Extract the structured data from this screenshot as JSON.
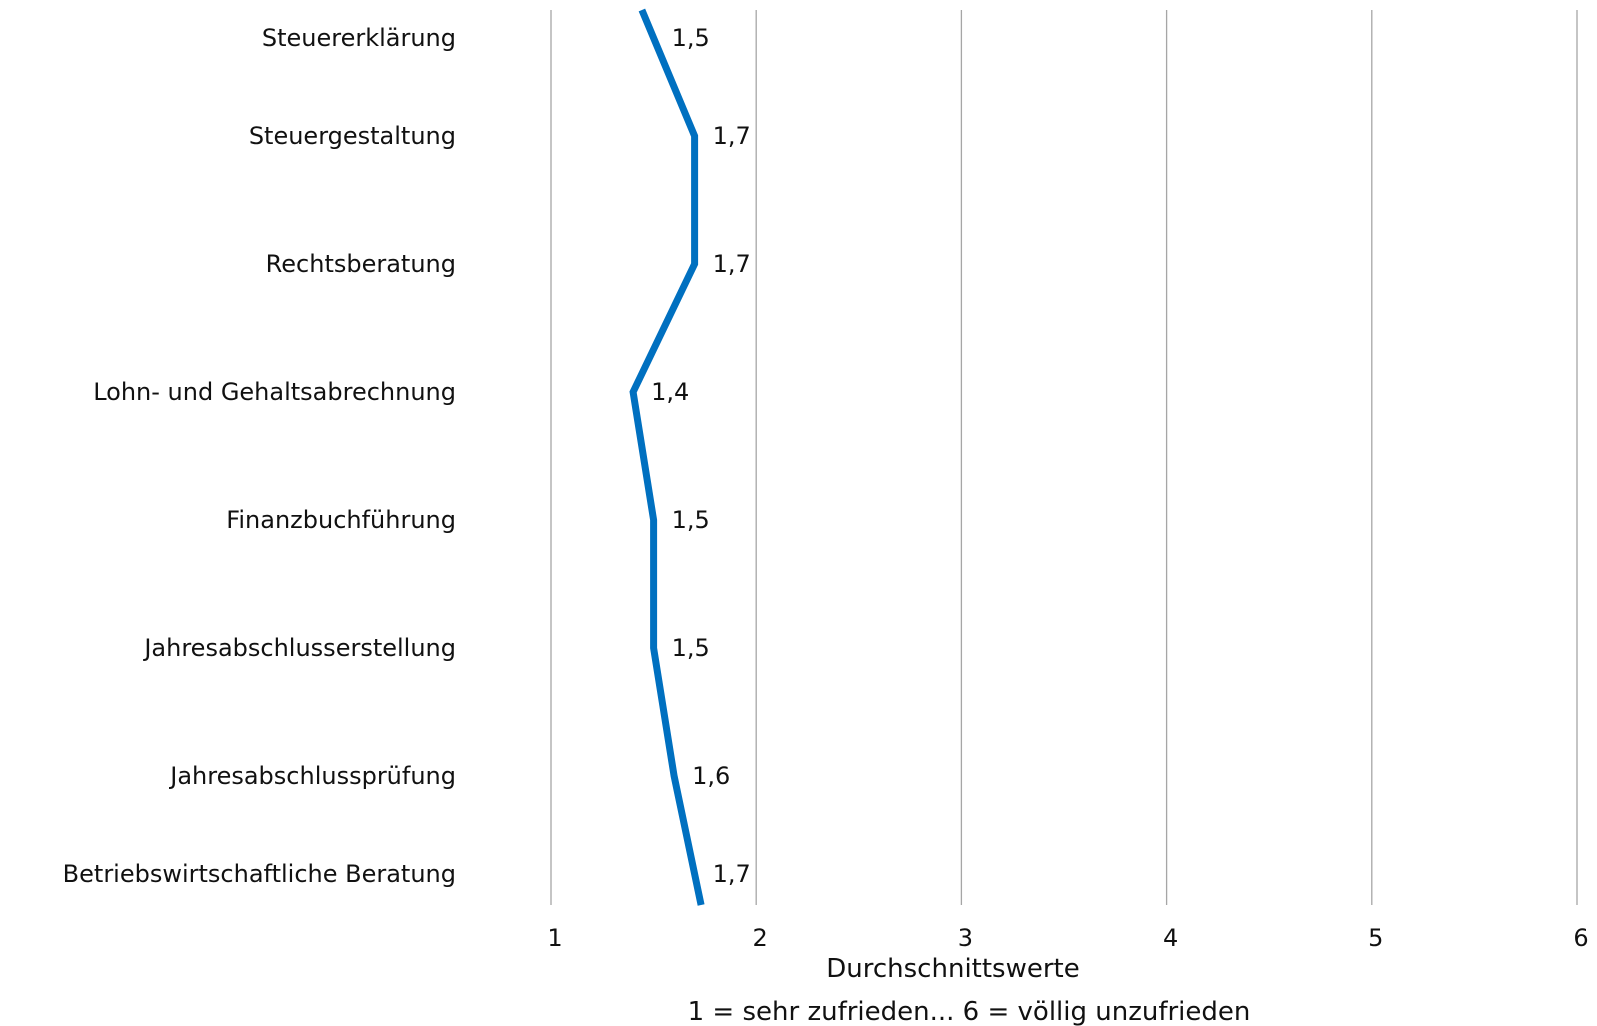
{
  "chart_data": {
    "type": "line",
    "orientation": "horizontal-values",
    "categories": [
      "Steuererklärung",
      "Steuergestaltung",
      "Rechtsberatung",
      "Lohn- und Gehaltsabrechnung",
      "Finanzbuchführung",
      "Jahresabschlusserstellung",
      "Jahresabschlussprüfung",
      "Betriebswirtschaftliche Beratung"
    ],
    "series": [
      {
        "values": [
          1.5,
          1.7,
          1.7,
          1.4,
          1.5,
          1.5,
          1.6,
          1.7
        ],
        "data_labels": [
          "1,5",
          "1,7",
          "1,7",
          "1,4",
          "1,5",
          "1,5",
          "1,6",
          "1,7"
        ],
        "color": "#0070c0"
      }
    ],
    "xlim": [
      1,
      6
    ],
    "xticks": [
      "1",
      "2",
      "3",
      "4",
      "5",
      "6"
    ],
    "xlabel": "Durchschnittswerte",
    "xlabel2": "1 = sehr zufrieden... 6 = völlig unzufrieden",
    "grid": true,
    "gridline_color": "#a6a6a6"
  }
}
